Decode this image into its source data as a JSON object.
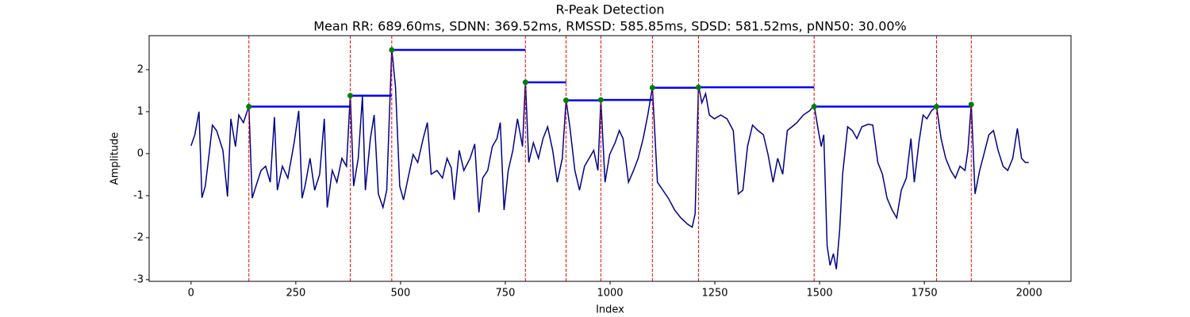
{
  "chart_data": {
    "type": "line",
    "title": "R-Peak Detection",
    "subtitle": "Mean RR: 689.60ms, SDNN: 369.52ms, RMSSD: 585.85ms, SDSD: 581.52ms, pNN50: 30.00%",
    "xlabel": "Index",
    "ylabel": "Amplitude",
    "xlim": [
      -100,
      2100
    ],
    "ylim": [
      -3.04,
      2.81
    ],
    "xticks": [
      0,
      250,
      500,
      750,
      1000,
      1250,
      1500,
      1750,
      2000
    ],
    "yticks": [
      -3,
      -2,
      -1,
      0,
      1,
      2
    ],
    "grid": false,
    "x": [
      0,
      9,
      19,
      26,
      34,
      42,
      51,
      61,
      76,
      87,
      95,
      106,
      114,
      125,
      138,
      146,
      155,
      167,
      178,
      189,
      199,
      206,
      218,
      231,
      246,
      257,
      265,
      272,
      284,
      295,
      307,
      318,
      325,
      337,
      348,
      360,
      371,
      380,
      388,
      399,
      409,
      416,
      428,
      437,
      447,
      458,
      467,
      479,
      488,
      498,
      507,
      518,
      530,
      541,
      554,
      564,
      573,
      587,
      600,
      611,
      621,
      628,
      640,
      651,
      666,
      677,
      687,
      696,
      708,
      719,
      730,
      738,
      747,
      757,
      768,
      779,
      791,
      798,
      806,
      817,
      829,
      840,
      851,
      863,
      874,
      886,
      895,
      904,
      916,
      927,
      939,
      950,
      961,
      971,
      978,
      988,
      999,
      1012,
      1022,
      1031,
      1044,
      1056,
      1067,
      1079,
      1090,
      1101,
      1113,
      1126,
      1139,
      1154,
      1169,
      1185,
      1196,
      1203,
      1211,
      1219,
      1228,
      1237,
      1249,
      1264,
      1279,
      1294,
      1306,
      1317,
      1328,
      1340,
      1353,
      1366,
      1377,
      1389,
      1400,
      1412,
      1423,
      1434,
      1446,
      1461,
      1476,
      1487,
      1497,
      1504,
      1510,
      1518,
      1525,
      1533,
      1540,
      1548,
      1555,
      1567,
      1578,
      1589,
      1601,
      1616,
      1627,
      1639,
      1650,
      1661,
      1673,
      1684,
      1695,
      1707,
      1718,
      1726,
      1737,
      1747,
      1756,
      1767,
      1779,
      1790,
      1801,
      1813,
      1824,
      1835,
      1847,
      1854,
      1862,
      1871,
      1882,
      1892,
      1904,
      1915,
      1926,
      1938,
      1949,
      1961,
      1972,
      1982,
      1991,
      1999
    ],
    "series": [
      {
        "color": "#00008b",
        "values": [
          0.19,
          0.45,
          1.0,
          -1.05,
          -0.77,
          -0.1,
          0.68,
          0.55,
          0.08,
          -1.02,
          0.83,
          0.17,
          0.92,
          0.74,
          1.13,
          -1.06,
          -0.77,
          -0.4,
          -0.3,
          -0.68,
          0.87,
          -0.87,
          -0.3,
          -0.58,
          0.26,
          1.02,
          -1.06,
          -0.77,
          -0.11,
          -0.87,
          -0.49,
          0.83,
          -1.28,
          -0.4,
          -0.68,
          -0.11,
          -0.3,
          1.4,
          -0.77,
          -0.11,
          1.36,
          -0.87,
          0.36,
          0.92,
          -0.96,
          -1.28,
          -0.87,
          2.49,
          1.58,
          -0.77,
          -1.1,
          -0.58,
          -0.02,
          -0.21,
          0.36,
          0.74,
          -0.49,
          -0.4,
          -0.58,
          -0.11,
          -0.34,
          -1.1,
          0.08,
          -0.4,
          -0.11,
          0.23,
          -1.4,
          -0.58,
          -0.4,
          0.17,
          0.36,
          0.74,
          -1.34,
          -0.4,
          0.08,
          0.83,
          0.17,
          1.72,
          -0.21,
          0.26,
          -0.11,
          0.36,
          0.64,
          0.08,
          -0.68,
          -0.11,
          1.28,
          0.64,
          -0.4,
          -0.87,
          -0.3,
          -0.11,
          0.08,
          -0.4,
          1.28,
          -0.68,
          -0.02,
          0.26,
          0.55,
          0.36,
          -0.68,
          -0.4,
          -0.11,
          0.36,
          0.92,
          1.58,
          -0.68,
          -0.87,
          -1.06,
          -1.34,
          -1.53,
          -1.68,
          -1.75,
          -1.43,
          1.62,
          1.21,
          1.43,
          0.92,
          0.83,
          0.92,
          0.83,
          0.55,
          -0.96,
          -0.87,
          0.17,
          0.68,
          0.55,
          0.45,
          -0.02,
          -0.68,
          -0.11,
          -0.49,
          0.55,
          0.64,
          0.74,
          0.92,
          1.02,
          1.15,
          0.55,
          0.17,
          0.45,
          -2.19,
          -2.66,
          -2.38,
          -2.75,
          -1.81,
          -0.49,
          0.64,
          0.55,
          0.36,
          0.64,
          0.7,
          0.68,
          -0.21,
          -0.49,
          -1.06,
          -1.34,
          -1.53,
          -0.87,
          -0.58,
          0.36,
          -0.68,
          0.26,
          0.92,
          0.83,
          1.02,
          1.13,
          0.36,
          -0.11,
          -0.4,
          -0.58,
          -0.3,
          -0.4,
          0.08,
          1.19,
          -0.96,
          -0.4,
          -0.02,
          0.45,
          0.55,
          0.08,
          -0.3,
          -0.4,
          -0.11,
          0.6,
          -0.11,
          -0.21,
          -0.21
        ]
      }
    ],
    "peaks": {
      "color": "green",
      "x": [
        138,
        380,
        479,
        798,
        895,
        978,
        1101,
        1211,
        1487,
        1779,
        1862
      ],
      "values": [
        1.12,
        1.38,
        2.47,
        1.7,
        1.27,
        1.28,
        1.57,
        1.58,
        1.12,
        1.12,
        1.17
      ]
    },
    "peak_line_color": "red",
    "rr_color": "blue"
  }
}
